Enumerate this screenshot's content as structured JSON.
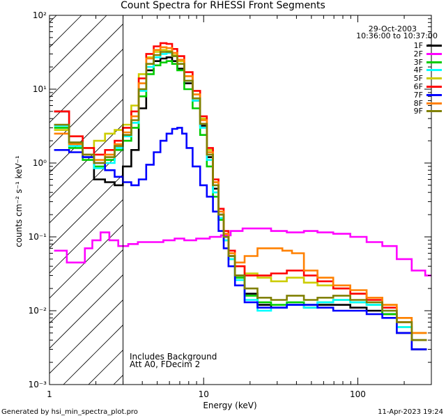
{
  "chart_data": {
    "type": "line",
    "title": "Count Spectra for RHESSI Front Segments",
    "date": "29-Oct-2003",
    "time_range": "10:36:00 to 10:37:00",
    "xlabel": "Energy (keV)",
    "ylabel": "counts cm⁻² s⁻¹ keV⁻¹",
    "xscale": "log",
    "yscale": "log",
    "xlim": [
      1,
      300
    ],
    "ylim": [
      0.001,
      100
    ],
    "x_tick_labels": [
      "1",
      "10",
      "100"
    ],
    "y_tick_labels": [
      "10⁻³",
      "10⁻²",
      "10⁻¹",
      "10⁰",
      "10¹",
      "10²"
    ],
    "hatched_region_max_keV": 3,
    "annotations": [
      "Includes Background",
      "Att A0, FDecim 2"
    ],
    "footer_left": "Generated by hsi_min_spectra_plot.pro",
    "footer_right": "11-Apr-2023 19:24",
    "series": [
      {
        "name": "1F",
        "color": "#000000",
        "x": [
          1.2,
          1.5,
          1.8,
          2.1,
          2.5,
          2.8,
          3.2,
          3.6,
          4.0,
          4.5,
          5.0,
          5.5,
          6.0,
          6.5,
          7.0,
          8.0,
          9.0,
          10.0,
          11.0,
          12.0,
          13.0,
          14.0,
          15.0,
          17.0,
          20.0,
          25.0,
          30.0,
          40.0,
          50.0,
          60.0,
          80.0,
          100.0,
          130.0,
          160.0,
          200.0,
          250.0
        ],
        "y": [
          5.0,
          1.9,
          1.2,
          0.6,
          0.55,
          0.5,
          0.9,
          1.5,
          5.5,
          18,
          24,
          26,
          27,
          24,
          19,
          12,
          7,
          3.2,
          1.2,
          0.45,
          0.2,
          0.1,
          0.055,
          0.03,
          0.017,
          0.012,
          0.011,
          0.012,
          0.011,
          0.012,
          0.012,
          0.011,
          0.01,
          0.009,
          0.005,
          0.003
        ]
      },
      {
        "name": "2F",
        "color": "#ff00ff",
        "x": [
          1.2,
          1.4,
          1.6,
          1.8,
          2.0,
          2.3,
          2.6,
          3.0,
          3.5,
          4.0,
          5.0,
          6.0,
          7.0,
          8.0,
          10.0,
          12.0,
          14.0,
          16.0,
          20.0,
          25.0,
          30.0,
          40.0,
          50.0,
          60.0,
          80.0,
          100.0,
          130.0,
          160.0,
          200.0,
          250.0,
          300.0
        ],
        "y": [
          0.065,
          0.045,
          0.045,
          0.07,
          0.09,
          0.115,
          0.09,
          0.075,
          0.08,
          0.085,
          0.085,
          0.09,
          0.095,
          0.09,
          0.095,
          0.1,
          0.105,
          0.12,
          0.13,
          0.13,
          0.12,
          0.115,
          0.12,
          0.115,
          0.11,
          0.1,
          0.085,
          0.075,
          0.05,
          0.035,
          0.03
        ]
      },
      {
        "name": "3F",
        "color": "#00cc00",
        "x": [
          1.2,
          1.5,
          1.8,
          2.1,
          2.5,
          2.8,
          3.2,
          3.6,
          4.0,
          4.5,
          5.0,
          5.5,
          6.0,
          6.5,
          7.0,
          8.0,
          9.0,
          10.0,
          11.0,
          12.0,
          13.0,
          14.0,
          15.0,
          17.0,
          20.0,
          25.0,
          30.0,
          40.0,
          50.0,
          60.0,
          80.0,
          100.0,
          130.0,
          160.0,
          200.0,
          250.0
        ],
        "y": [
          3.0,
          1.6,
          1.1,
          0.9,
          1.1,
          1.5,
          2.0,
          3.0,
          8.0,
          16,
          21,
          23,
          24,
          22,
          18,
          10,
          5.5,
          2.4,
          0.9,
          0.35,
          0.17,
          0.09,
          0.05,
          0.028,
          0.016,
          0.013,
          0.012,
          0.013,
          0.012,
          0.013,
          0.014,
          0.013,
          0.012,
          0.009,
          0.006,
          0.004
        ]
      },
      {
        "name": "4F",
        "color": "#00ffff",
        "x": [
          1.2,
          1.5,
          1.8,
          2.1,
          2.5,
          2.8,
          3.2,
          3.6,
          4.0,
          4.5,
          5.0,
          5.5,
          6.0,
          6.5,
          7.0,
          8.0,
          9.0,
          10.0,
          11.0,
          12.0,
          13.0,
          14.0,
          15.0,
          17.0,
          20.0,
          25.0,
          30.0,
          40.0,
          50.0,
          60.0,
          80.0,
          100.0,
          130.0,
          160.0,
          200.0,
          250.0
        ],
        "y": [
          3.2,
          1.7,
          1.2,
          0.85,
          1.0,
          1.6,
          2.3,
          3.5,
          9.5,
          20,
          27,
          30,
          31,
          28,
          22,
          13,
          7,
          3.0,
          1.1,
          0.4,
          0.18,
          0.09,
          0.05,
          0.026,
          0.014,
          0.01,
          0.011,
          0.012,
          0.011,
          0.013,
          0.014,
          0.013,
          0.012,
          0.01,
          0.006,
          0.004
        ]
      },
      {
        "name": "5F",
        "color": "#cccc00",
        "x": [
          1.2,
          1.5,
          1.8,
          2.1,
          2.5,
          2.8,
          3.2,
          3.6,
          4.0,
          4.5,
          5.0,
          5.5,
          6.0,
          6.5,
          7.0,
          8.0,
          9.0,
          10.0,
          11.0,
          12.0,
          13.0,
          14.0,
          15.0,
          17.0,
          20.0,
          25.0,
          30.0,
          40.0,
          50.0,
          60.0,
          80.0,
          100.0,
          130.0,
          160.0,
          200.0,
          250.0
        ],
        "y": [
          2.8,
          2.3,
          1.6,
          2.0,
          2.5,
          2.8,
          3.3,
          6.0,
          16,
          27,
          32,
          34,
          33,
          29,
          24,
          15,
          8.5,
          4.0,
          1.5,
          0.55,
          0.22,
          0.11,
          0.06,
          0.04,
          0.032,
          0.028,
          0.025,
          0.028,
          0.024,
          0.022,
          0.02,
          0.017,
          0.015,
          0.012,
          0.008,
          0.005
        ]
      },
      {
        "name": "6F",
        "color": "#ff0000",
        "x": [
          1.2,
          1.5,
          1.8,
          2.1,
          2.5,
          2.8,
          3.2,
          3.6,
          4.0,
          4.5,
          5.0,
          5.5,
          6.0,
          6.5,
          7.0,
          8.0,
          9.0,
          10.0,
          11.0,
          12.0,
          13.0,
          14.0,
          15.0,
          17.0,
          20.0,
          25.0,
          30.0,
          40.0,
          50.0,
          60.0,
          80.0,
          100.0,
          130.0,
          160.0,
          200.0,
          250.0
        ],
        "y": [
          5.0,
          2.3,
          1.6,
          1.3,
          1.5,
          2.0,
          3.0,
          5.0,
          14,
          30,
          38,
          42,
          41,
          35,
          28,
          17,
          9.5,
          4.3,
          1.6,
          0.6,
          0.24,
          0.12,
          0.065,
          0.04,
          0.03,
          0.03,
          0.032,
          0.035,
          0.03,
          0.025,
          0.02,
          0.017,
          0.014,
          0.011,
          0.007,
          0.004
        ]
      },
      {
        "name": "7F",
        "color": "#0000ff",
        "x": [
          1.2,
          1.5,
          1.8,
          2.1,
          2.5,
          2.8,
          3.2,
          3.6,
          4.0,
          4.5,
          5.0,
          5.5,
          6.0,
          6.5,
          7.0,
          7.5,
          8.0,
          9.0,
          10.0,
          11.0,
          12.0,
          13.0,
          14.0,
          15.0,
          17.0,
          20.0,
          25.0,
          30.0,
          40.0,
          50.0,
          60.0,
          80.0,
          100.0,
          130.0,
          160.0,
          200.0,
          250.0
        ],
        "y": [
          1.5,
          1.4,
          1.2,
          1.0,
          0.8,
          0.65,
          0.55,
          0.5,
          0.6,
          0.95,
          1.4,
          2.0,
          2.5,
          2.9,
          3.0,
          2.5,
          1.6,
          0.9,
          0.5,
          0.35,
          0.22,
          0.12,
          0.07,
          0.04,
          0.022,
          0.013,
          0.011,
          0.011,
          0.012,
          0.012,
          0.011,
          0.01,
          0.01,
          0.009,
          0.008,
          0.005,
          0.003
        ]
      },
      {
        "name": "8F",
        "color": "#ff8000",
        "x": [
          1.2,
          1.5,
          1.8,
          2.1,
          2.5,
          2.8,
          3.2,
          3.6,
          4.0,
          4.5,
          5.0,
          5.5,
          6.0,
          6.5,
          7.0,
          8.0,
          9.0,
          10.0,
          11.0,
          12.0,
          13.0,
          14.0,
          15.0,
          17.0,
          20.0,
          25.0,
          30.0,
          35.0,
          40.0,
          50.0,
          60.0,
          80.0,
          100.0,
          130.0,
          160.0,
          200.0,
          250.0
        ],
        "y": [
          2.5,
          1.8,
          1.3,
          1.1,
          1.3,
          1.8,
          2.6,
          4.3,
          12,
          26,
          34,
          37,
          36,
          31,
          25,
          15,
          8.5,
          3.8,
          1.4,
          0.55,
          0.22,
          0.11,
          0.06,
          0.045,
          0.055,
          0.07,
          0.07,
          0.065,
          0.06,
          0.035,
          0.028,
          0.022,
          0.019,
          0.015,
          0.012,
          0.008,
          0.005
        ]
      },
      {
        "name": "9F",
        "color": "#808000",
        "x": [
          1.2,
          1.5,
          1.8,
          2.1,
          2.5,
          2.8,
          3.2,
          3.6,
          4.0,
          4.5,
          5.0,
          5.5,
          6.0,
          6.5,
          7.0,
          8.0,
          9.0,
          10.0,
          11.0,
          12.0,
          13.0,
          14.0,
          15.0,
          17.0,
          20.0,
          25.0,
          30.0,
          40.0,
          50.0,
          60.0,
          80.0,
          100.0,
          130.0,
          160.0,
          200.0,
          250.0
        ],
        "y": [
          3.3,
          1.9,
          1.3,
          1.0,
          1.2,
          1.7,
          2.4,
          3.8,
          10,
          22,
          29,
          32,
          32,
          28,
          22,
          13,
          7.5,
          3.4,
          1.3,
          0.5,
          0.2,
          0.1,
          0.055,
          0.03,
          0.02,
          0.015,
          0.014,
          0.016,
          0.014,
          0.015,
          0.016,
          0.014,
          0.013,
          0.01,
          0.007,
          0.004
        ]
      }
    ]
  }
}
